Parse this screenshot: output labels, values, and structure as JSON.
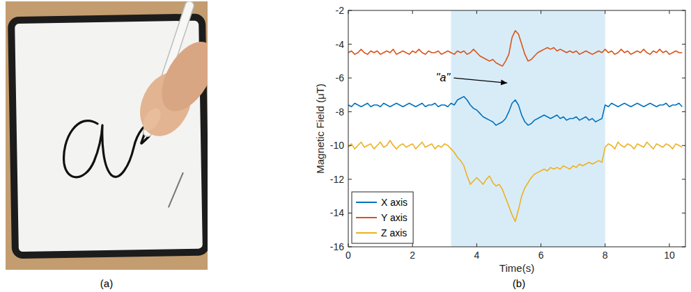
{
  "figure": {
    "panel_captions": [
      "(a)",
      "(b)"
    ]
  },
  "chart_data": {
    "type": "line",
    "x_label": "Time(s)",
    "y_label": "Magnetic Field (μT)",
    "xlim": [
      0,
      10.5
    ],
    "xticks": [
      0,
      2,
      4,
      6,
      8,
      10
    ],
    "ylim": [
      -16,
      -2
    ],
    "yticks": [
      -16,
      -14,
      -12,
      -10,
      -8,
      -6,
      -4,
      -2
    ],
    "grid": false,
    "legend": "lower left",
    "highlight": [
      3.2,
      8.0
    ],
    "annotations": [
      {
        "text": "\"a\"",
        "x": 2.95,
        "y": -6.0,
        "arrow_x": 4.95,
        "arrow_y": -6.3
      }
    ],
    "x": [
      0,
      0.1,
      0.2,
      0.3,
      0.4,
      0.5,
      0.6,
      0.7,
      0.8,
      0.9,
      1,
      1.1,
      1.2,
      1.3,
      1.4,
      1.5,
      1.6,
      1.7,
      1.8,
      1.9,
      2,
      2.1,
      2.2,
      2.3,
      2.4,
      2.5,
      2.6,
      2.7,
      2.8,
      2.9,
      3,
      3.1,
      3.2,
      3.3,
      3.4,
      3.5,
      3.6,
      3.7,
      3.8,
      3.9,
      4,
      4.1,
      4.2,
      4.3,
      4.4,
      4.5,
      4.6,
      4.7,
      4.8,
      4.9,
      5,
      5.1,
      5.2,
      5.3,
      5.4,
      5.5,
      5.6,
      5.7,
      5.8,
      5.9,
      6,
      6.1,
      6.2,
      6.3,
      6.4,
      6.5,
      6.6,
      6.7,
      6.8,
      6.9,
      7,
      7.1,
      7.2,
      7.3,
      7.4,
      7.5,
      7.6,
      7.7,
      7.8,
      7.9,
      8,
      8.1,
      8.2,
      8.3,
      8.4,
      8.5,
      8.6,
      8.7,
      8.8,
      8.9,
      9,
      9.1,
      9.2,
      9.3,
      9.4,
      9.5,
      9.6,
      9.7,
      9.8,
      9.9,
      10,
      10.1,
      10.2,
      10.3,
      10.4
    ],
    "series": [
      {
        "name": "X axis",
        "color": "#0072bd",
        "values": [
          -7.6,
          -7.7,
          -7.5,
          -7.6,
          -7.7,
          -7.6,
          -7.5,
          -7.7,
          -7.6,
          -7.6,
          -7.7,
          -7.5,
          -7.6,
          -7.7,
          -7.6,
          -7.5,
          -7.6,
          -7.7,
          -7.6,
          -7.5,
          -7.6,
          -7.7,
          -7.6,
          -7.5,
          -7.7,
          -7.6,
          -7.6,
          -7.5,
          -7.7,
          -7.6,
          -7.6,
          -7.7,
          -7.5,
          -7.6,
          -7.3,
          -7.2,
          -7.1,
          -7.3,
          -7.6,
          -7.8,
          -7.9,
          -8.1,
          -8.3,
          -8.4,
          -8.5,
          -8.6,
          -8.8,
          -8.7,
          -8.6,
          -8.4,
          -8.0,
          -7.5,
          -7.3,
          -7.6,
          -8.2,
          -8.6,
          -8.8,
          -8.7,
          -8.5,
          -8.4,
          -8.3,
          -8.2,
          -8.3,
          -8.4,
          -8.3,
          -8.2,
          -8.4,
          -8.3,
          -8.5,
          -8.4,
          -8.4,
          -8.3,
          -8.5,
          -8.4,
          -8.3,
          -8.5,
          -8.4,
          -8.6,
          -8.5,
          -8.4,
          -7.6,
          -7.7,
          -7.5,
          -7.6,
          -7.7,
          -7.6,
          -7.5,
          -7.6,
          -7.7,
          -7.6,
          -7.5,
          -7.6,
          -7.7,
          -7.6,
          -7.5,
          -7.6,
          -7.7,
          -7.6,
          -7.6,
          -7.5,
          -7.7,
          -7.6,
          -7.6,
          -7.5,
          -7.7
        ]
      },
      {
        "name": "Y axis",
        "color": "#d95319",
        "values": [
          -4.5,
          -4.4,
          -4.6,
          -4.5,
          -4.3,
          -4.5,
          -4.6,
          -4.4,
          -4.5,
          -4.4,
          -4.6,
          -4.5,
          -4.4,
          -4.5,
          -4.3,
          -4.6,
          -4.5,
          -4.4,
          -4.5,
          -4.6,
          -4.4,
          -4.5,
          -4.3,
          -4.5,
          -4.6,
          -4.4,
          -4.5,
          -4.5,
          -4.4,
          -4.6,
          -4.5,
          -4.4,
          -4.5,
          -4.6,
          -4.4,
          -4.5,
          -4.4,
          -4.6,
          -4.5,
          -4.3,
          -4.5,
          -4.7,
          -4.8,
          -4.9,
          -5.0,
          -4.9,
          -5.1,
          -5.2,
          -5.3,
          -5.0,
          -4.6,
          -3.6,
          -3.2,
          -3.4,
          -4.0,
          -4.6,
          -5.0,
          -4.9,
          -4.7,
          -4.5,
          -4.4,
          -4.3,
          -4.2,
          -4.3,
          -4.2,
          -4.4,
          -4.3,
          -4.4,
          -4.5,
          -4.4,
          -4.5,
          -4.4,
          -4.6,
          -4.5,
          -4.4,
          -4.5,
          -4.6,
          -4.5,
          -4.4,
          -4.5,
          -4.3,
          -4.5,
          -4.4,
          -4.6,
          -4.5,
          -4.3,
          -4.5,
          -4.4,
          -4.6,
          -4.5,
          -4.4,
          -4.5,
          -4.3,
          -4.5,
          -4.6,
          -4.4,
          -4.5,
          -4.3,
          -4.5,
          -4.4,
          -4.6,
          -4.5,
          -4.4,
          -4.5,
          -4.5
        ]
      },
      {
        "name": "Z axis",
        "color": "#edb120",
        "values": [
          -10.1,
          -9.9,
          -10.2,
          -10.0,
          -9.8,
          -10.1,
          -10.0,
          -9.9,
          -10.2,
          -10.0,
          -9.8,
          -10.1,
          -10.0,
          -9.7,
          -10.0,
          -10.2,
          -10.0,
          -9.9,
          -10.1,
          -10.0,
          -9.9,
          -10.2,
          -10.0,
          -9.8,
          -10.1,
          -10.0,
          -9.9,
          -10.2,
          -10.0,
          -10.1,
          -9.9,
          -10.0,
          -10.2,
          -10.4,
          -10.7,
          -10.9,
          -11.2,
          -11.8,
          -12.3,
          -12.1,
          -11.9,
          -12.1,
          -12.3,
          -12.0,
          -11.8,
          -12.2,
          -12.4,
          -12.3,
          -12.6,
          -13.1,
          -13.6,
          -14.1,
          -14.5,
          -13.8,
          -13.0,
          -12.5,
          -12.2,
          -11.9,
          -11.7,
          -11.6,
          -11.5,
          -11.4,
          -11.5,
          -11.3,
          -11.4,
          -11.3,
          -11.4,
          -11.2,
          -11.3,
          -11.4,
          -11.2,
          -11.3,
          -11.1,
          -11.2,
          -11.1,
          -11.0,
          -11.1,
          -11.0,
          -10.9,
          -11.0,
          -10.1,
          -9.9,
          -10.0,
          -10.2,
          -9.8,
          -10.0,
          -10.1,
          -9.9,
          -10.0,
          -10.2,
          -9.9,
          -10.0,
          -10.1,
          -9.8,
          -10.0,
          -10.2,
          -9.9,
          -10.0,
          -10.1,
          -9.9,
          -10.0,
          -10.2,
          -9.9,
          -10.0,
          -10.1
        ]
      }
    ]
  }
}
